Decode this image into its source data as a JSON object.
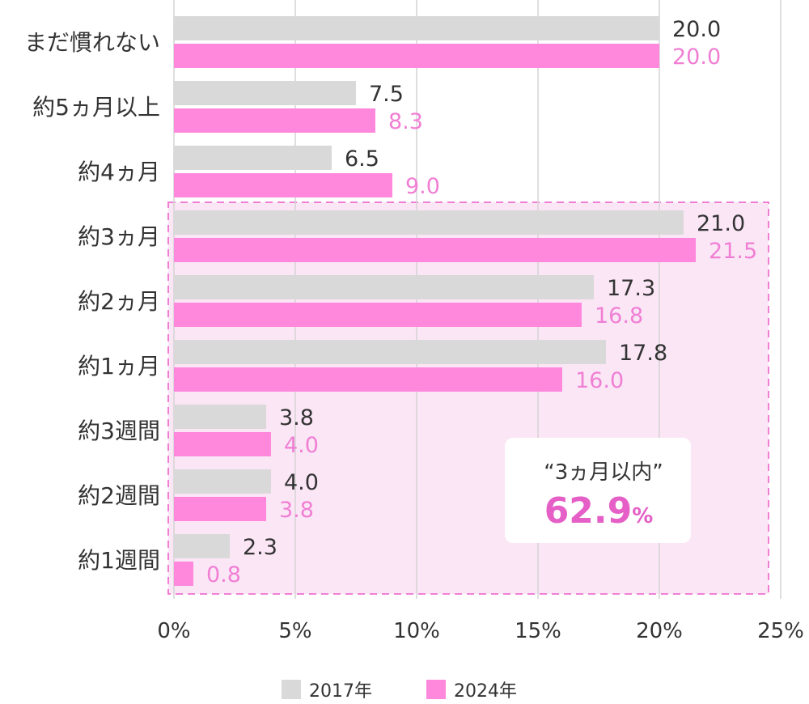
{
  "chart_data": {
    "type": "bar",
    "orientation": "horizontal",
    "categories": [
      "まだ慣れない",
      "約5ヵ月以上",
      "約4ヵ月",
      "約3ヵ月",
      "約2ヵ月",
      "約1ヵ月",
      "約3週間",
      "約2週間",
      "約1週間"
    ],
    "series": [
      {
        "name": "2017年",
        "values": [
          20.0,
          7.5,
          6.5,
          21.0,
          17.3,
          17.8,
          3.8,
          4.0,
          2.3
        ],
        "labels": [
          "20.0",
          "7.5",
          "6.5",
          "21.0",
          "17.3",
          "17.8",
          "3.8",
          "4.0",
          "2.3"
        ],
        "color": "#d9d9d9",
        "label_color": "#333333"
      },
      {
        "name": "2024年",
        "values": [
          20.0,
          8.3,
          9.0,
          21.5,
          16.8,
          16.0,
          4.0,
          3.8,
          0.8
        ],
        "labels": [
          "20.0",
          "8.3",
          "9.0",
          "21.5",
          "16.8",
          "16.0",
          "4.0",
          "3.8",
          "0.8"
        ],
        "color": "#ff88dd",
        "label_color": "#f07fd4"
      }
    ],
    "xlim": [
      0,
      25
    ],
    "xticks": [
      0,
      5,
      10,
      15,
      20,
      25
    ],
    "xtick_labels": [
      "0%",
      "5%",
      "10%",
      "15%",
      "20%",
      "25%"
    ],
    "grid": true,
    "legend_position": "bottom",
    "highlight": {
      "categories": [
        "約3ヵ月",
        "約2ヵ月",
        "約1ヵ月",
        "約3週間",
        "約2週間",
        "約1週間"
      ],
      "label": "“3ヵ月以内”",
      "value": "62.9",
      "unit": "%",
      "fill": "#fbe6f6",
      "border": "#f07fd4"
    }
  }
}
